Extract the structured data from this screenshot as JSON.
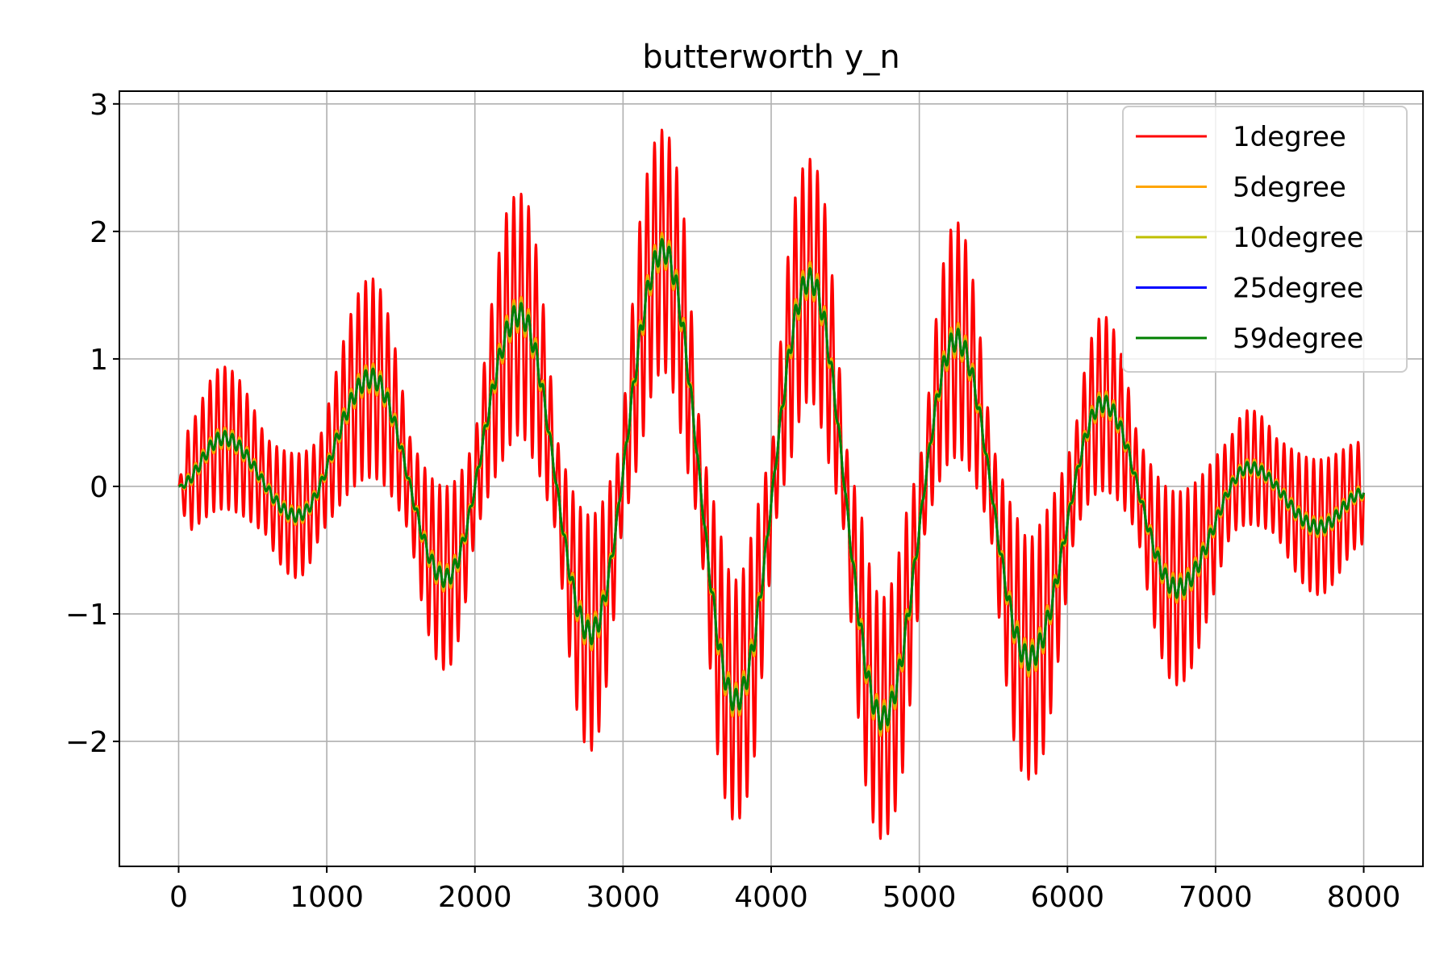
{
  "chart_data": {
    "type": "line",
    "title": "butterworth y_n",
    "xlabel": "",
    "ylabel": "",
    "xlim": [
      -400,
      8400
    ],
    "ylim": [
      -2.98,
      3.1
    ],
    "xticks": [
      0,
      1000,
      2000,
      3000,
      4000,
      5000,
      6000,
      7000,
      8000
    ],
    "xtick_labels": [
      "0",
      "1000",
      "2000",
      "3000",
      "4000",
      "5000",
      "6000",
      "7000",
      "8000"
    ],
    "yticks": [
      -2,
      -1,
      0,
      1,
      2,
      3
    ],
    "ytick_labels": [
      "−2",
      "−1",
      "0",
      "1",
      "2",
      "3"
    ],
    "grid": true,
    "legend_position": "top-right",
    "x_range": [
      0,
      8000
    ],
    "envelope_points": {
      "x": [
        0,
        300,
        800,
        1300,
        1800,
        2300,
        2780,
        3270,
        3760,
        4260,
        4750,
        5250,
        5740,
        6240,
        6740,
        7230,
        7700,
        8000
      ],
      "y": [
        0.0,
        0.38,
        -0.23,
        0.85,
        -0.72,
        1.35,
        -1.15,
        1.85,
        -1.68,
        1.62,
        -1.82,
        1.15,
        -1.35,
        0.65,
        -0.8,
        0.15,
        -0.32,
        -0.05
      ]
    },
    "series": [
      {
        "name": "1degree",
        "color": "#ff0000",
        "ripple_amplitude": 0.95
      },
      {
        "name": "5degree",
        "color": "#ffa500",
        "ripple_amplitude": 0.14
      },
      {
        "name": "10degree",
        "color": "#bfbf00",
        "ripple_amplitude": 0.11
      },
      {
        "name": "25degree",
        "color": "#0000ff",
        "ripple_amplitude": 0.09
      },
      {
        "name": "59degree",
        "color": "#008000",
        "ripple_amplitude": 0.09
      }
    ],
    "ripple_period": 50
  }
}
